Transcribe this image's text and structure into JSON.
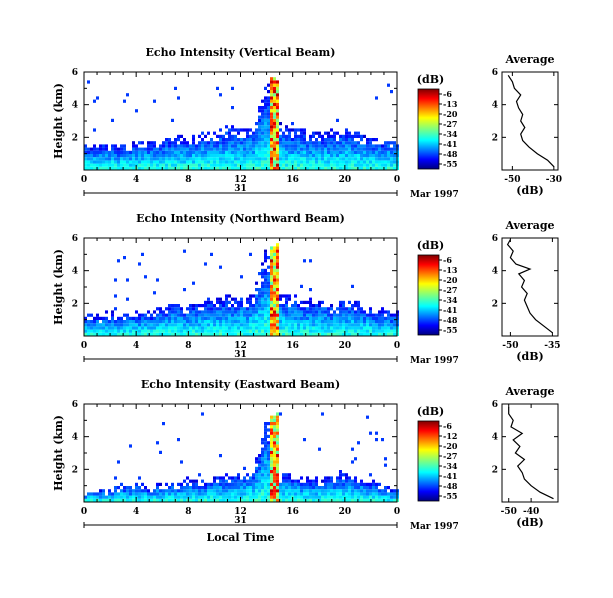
{
  "chart_data": [
    {
      "type": "heatmap",
      "title": "Echo Intensity (Vertical Beam)",
      "ylabel": "Height (km)",
      "x_ticks": [
        "0",
        "4",
        "8",
        "12",
        "16",
        "20",
        "0"
      ],
      "xlim": [
        0,
        24
      ],
      "y_ticks": [
        "2",
        "4",
        "6"
      ],
      "ylim": [
        0,
        6
      ],
      "date_day": "31",
      "date_label": "Mar 1997",
      "colorbar": {
        "unit": "(dB)",
        "ticks": [
          "-6",
          "-13",
          "-20",
          "-27",
          "-34",
          "-41",
          "-48",
          "-55"
        ]
      },
      "echo_top_km": [
        {
          "hour": 0,
          "top": 1.5
        },
        {
          "hour": 1,
          "top": 1.4
        },
        {
          "hour": 2,
          "top": 1.6
        },
        {
          "hour": 3,
          "top": 1.5
        },
        {
          "hour": 4,
          "top": 1.6
        },
        {
          "hour": 5,
          "top": 1.7
        },
        {
          "hour": 6,
          "top": 1.8
        },
        {
          "hour": 7,
          "top": 2.0
        },
        {
          "hour": 8,
          "top": 2.1
        },
        {
          "hour": 9,
          "top": 2.2
        },
        {
          "hour": 10,
          "top": 2.4
        },
        {
          "hour": 11,
          "top": 2.6
        },
        {
          "hour": 12,
          "top": 2.6
        },
        {
          "hour": 13,
          "top": 2.8
        },
        {
          "hour": 14,
          "top": 5.6
        },
        {
          "hour": 15,
          "top": 2.9
        },
        {
          "hour": 16,
          "top": 2.6
        },
        {
          "hour": 17,
          "top": 2.4
        },
        {
          "hour": 18,
          "top": 2.2
        },
        {
          "hour": 19,
          "top": 2.3
        },
        {
          "hour": 20,
          "top": 2.6
        },
        {
          "hour": 21,
          "top": 2.4
        },
        {
          "hour": 22,
          "top": 1.9
        },
        {
          "hour": 23,
          "top": 1.9
        },
        {
          "hour": 24,
          "top": 1.8
        }
      ],
      "spike_hour": 14.6,
      "average_profile": {
        "title": "Average",
        "xlabel": "(dB)",
        "x_ticks": [
          "-50",
          "-30"
        ],
        "xlim": [
          -55,
          -28
        ],
        "y_ticks": [
          "2",
          "4",
          "6"
        ],
        "ylim": [
          0,
          6
        ],
        "profile": [
          {
            "h": 0.2,
            "db": -30
          },
          {
            "h": 0.6,
            "db": -33
          },
          {
            "h": 1.0,
            "db": -38
          },
          {
            "h": 1.4,
            "db": -42
          },
          {
            "h": 1.8,
            "db": -45
          },
          {
            "h": 2.2,
            "db": -46
          },
          {
            "h": 2.6,
            "db": -44
          },
          {
            "h": 3.0,
            "db": -46
          },
          {
            "h": 3.4,
            "db": -45
          },
          {
            "h": 3.8,
            "db": -47
          },
          {
            "h": 4.2,
            "db": -48
          },
          {
            "h": 4.6,
            "db": -46
          },
          {
            "h": 5.0,
            "db": -49
          },
          {
            "h": 5.4,
            "db": -50
          },
          {
            "h": 5.8,
            "db": -52
          }
        ]
      }
    },
    {
      "type": "heatmap",
      "title": "Echo Intensity (Northward Beam)",
      "ylabel": "Height (km)",
      "x_ticks": [
        "0",
        "4",
        "8",
        "12",
        "16",
        "20",
        "0"
      ],
      "xlim": [
        0,
        24
      ],
      "y_ticks": [
        "2",
        "4",
        "6"
      ],
      "ylim": [
        0,
        6
      ],
      "date_day": "31",
      "date_label": "Mar 1997",
      "colorbar": {
        "unit": "(dB)",
        "ticks": [
          "-6",
          "-13",
          "-20",
          "-27",
          "-34",
          "-41",
          "-48",
          "-55"
        ]
      },
      "echo_top_km": [
        {
          "hour": 0,
          "top": 1.3
        },
        {
          "hour": 1,
          "top": 1.2
        },
        {
          "hour": 2,
          "top": 1.4
        },
        {
          "hour": 3,
          "top": 1.3
        },
        {
          "hour": 4,
          "top": 1.4
        },
        {
          "hour": 5,
          "top": 1.5
        },
        {
          "hour": 6,
          "top": 1.8
        },
        {
          "hour": 7,
          "top": 2.0
        },
        {
          "hour": 8,
          "top": 1.9
        },
        {
          "hour": 9,
          "top": 2.0
        },
        {
          "hour": 10,
          "top": 2.2
        },
        {
          "hour": 11,
          "top": 2.3
        },
        {
          "hour": 12,
          "top": 2.4
        },
        {
          "hour": 13,
          "top": 2.5
        },
        {
          "hour": 14,
          "top": 5.5
        },
        {
          "hour": 15,
          "top": 2.6
        },
        {
          "hour": 16,
          "top": 2.4
        },
        {
          "hour": 17,
          "top": 2.2
        },
        {
          "hour": 18,
          "top": 2.1
        },
        {
          "hour": 19,
          "top": 2.0
        },
        {
          "hour": 20,
          "top": 2.2
        },
        {
          "hour": 21,
          "top": 2.1
        },
        {
          "hour": 22,
          "top": 1.7
        },
        {
          "hour": 23,
          "top": 1.6
        },
        {
          "hour": 24,
          "top": 1.5
        }
      ],
      "spike_hour": 14.6,
      "average_profile": {
        "title": "Average",
        "xlabel": "(dB)",
        "x_ticks": [
          "-50",
          "-35"
        ],
        "xlim": [
          -53,
          -33
        ],
        "y_ticks": [
          "2",
          "4",
          "6"
        ],
        "ylim": [
          0,
          6
        ],
        "profile": [
          {
            "h": 0.2,
            "db": -35
          },
          {
            "h": 0.6,
            "db": -38
          },
          {
            "h": 1.0,
            "db": -41
          },
          {
            "h": 1.4,
            "db": -43
          },
          {
            "h": 1.8,
            "db": -44
          },
          {
            "h": 2.2,
            "db": -45
          },
          {
            "h": 2.6,
            "db": -44
          },
          {
            "h": 3.0,
            "db": -46
          },
          {
            "h": 3.4,
            "db": -45
          },
          {
            "h": 3.8,
            "db": -47
          },
          {
            "h": 4.1,
            "db": -43
          },
          {
            "h": 4.4,
            "db": -48
          },
          {
            "h": 4.8,
            "db": -50
          },
          {
            "h": 5.2,
            "db": -49
          },
          {
            "h": 5.6,
            "db": -51
          },
          {
            "h": 5.9,
            "db": -50
          }
        ]
      }
    },
    {
      "type": "heatmap",
      "title": "Echo Intensity (Eastward Beam)",
      "ylabel": "Height (km)",
      "xlabel": "Local Time",
      "x_ticks": [
        "0",
        "4",
        "8",
        "12",
        "16",
        "20",
        "0"
      ],
      "xlim": [
        0,
        24
      ],
      "y_ticks": [
        "2",
        "4",
        "6"
      ],
      "ylim": [
        0,
        6
      ],
      "date_day": "31",
      "date_label": "Mar 1997",
      "colorbar": {
        "unit": "(dB)",
        "ticks": [
          "-6",
          "-12",
          "-20",
          "-27",
          "-34",
          "-41",
          "-48",
          "-55"
        ]
      },
      "echo_top_km": [
        {
          "hour": 0,
          "top": 0.6
        },
        {
          "hour": 1,
          "top": 0.7
        },
        {
          "hour": 2,
          "top": 0.8
        },
        {
          "hour": 3,
          "top": 1.0
        },
        {
          "hour": 4,
          "top": 1.1
        },
        {
          "hour": 5,
          "top": 0.9
        },
        {
          "hour": 6,
          "top": 1.0
        },
        {
          "hour": 7,
          "top": 1.2
        },
        {
          "hour": 8,
          "top": 1.4
        },
        {
          "hour": 9,
          "top": 1.3
        },
        {
          "hour": 10,
          "top": 1.4
        },
        {
          "hour": 11,
          "top": 1.6
        },
        {
          "hour": 12,
          "top": 1.7
        },
        {
          "hour": 13,
          "top": 1.9
        },
        {
          "hour": 14,
          "top": 5.4
        },
        {
          "hour": 15,
          "top": 1.8
        },
        {
          "hour": 16,
          "top": 1.6
        },
        {
          "hour": 17,
          "top": 1.4
        },
        {
          "hour": 18,
          "top": 1.3
        },
        {
          "hour": 19,
          "top": 1.6
        },
        {
          "hour": 20,
          "top": 1.8
        },
        {
          "hour": 21,
          "top": 1.5
        },
        {
          "hour": 22,
          "top": 1.2
        },
        {
          "hour": 23,
          "top": 1.0
        },
        {
          "hour": 24,
          "top": 0.9
        }
      ],
      "spike_hour": 14.6,
      "average_profile": {
        "title": "Average",
        "xlabel": "(dB)",
        "x_ticks": [
          "-50",
          "-40"
        ],
        "xlim": [
          -53,
          -28
        ],
        "y_ticks": [
          "2",
          "4",
          "6"
        ],
        "ylim": [
          0,
          6
        ],
        "profile": [
          {
            "h": 0.2,
            "db": -30
          },
          {
            "h": 0.6,
            "db": -36
          },
          {
            "h": 1.0,
            "db": -40
          },
          {
            "h": 1.4,
            "db": -43
          },
          {
            "h": 1.8,
            "db": -44
          },
          {
            "h": 2.2,
            "db": -46
          },
          {
            "h": 2.6,
            "db": -43
          },
          {
            "h": 3.0,
            "db": -47
          },
          {
            "h": 3.4,
            "db": -45
          },
          {
            "h": 3.8,
            "db": -48
          },
          {
            "h": 4.2,
            "db": -44
          },
          {
            "h": 4.6,
            "db": -49
          },
          {
            "h": 5.0,
            "db": -48
          },
          {
            "h": 5.4,
            "db": -50
          },
          {
            "h": 5.8,
            "db": -50
          }
        ]
      }
    }
  ]
}
